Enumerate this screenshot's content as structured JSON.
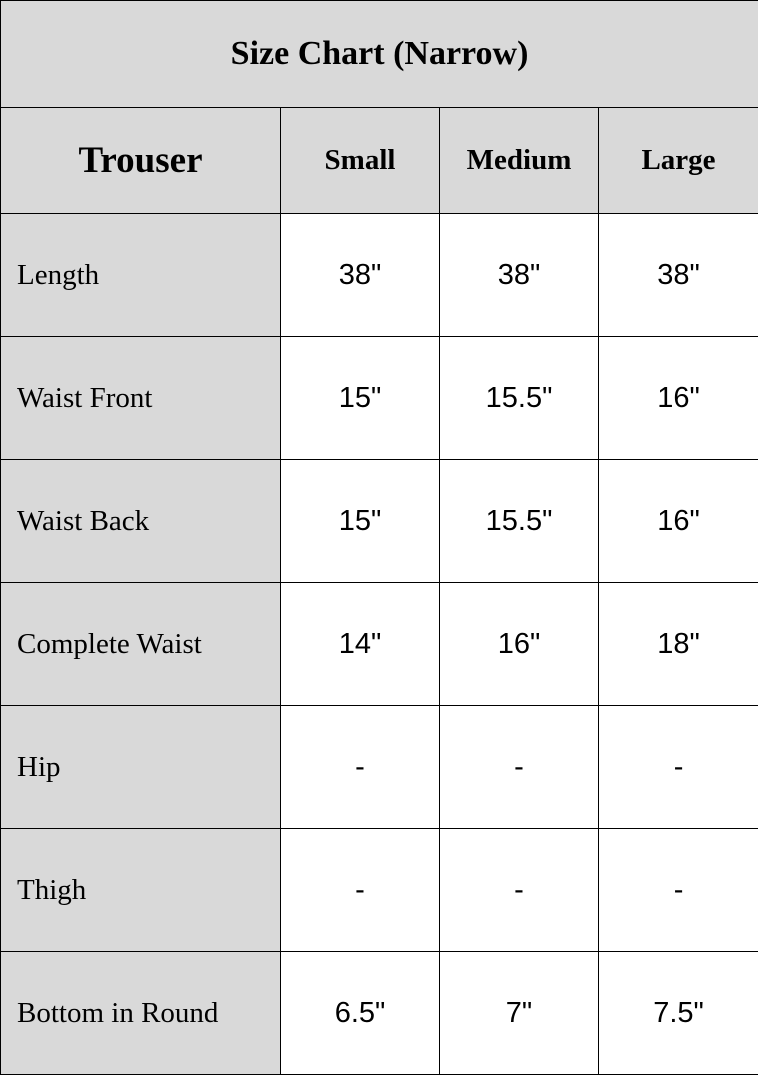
{
  "title": "Size Chart (Narrow)",
  "header": {
    "corner": "Trouser",
    "sizes": [
      "Small",
      "Medium",
      "Large"
    ]
  },
  "rows": [
    {
      "label": "Length",
      "values": [
        "38\"",
        "38\"",
        "38\""
      ]
    },
    {
      "label": "Waist Front",
      "values": [
        "15\"",
        "15.5\"",
        "16\""
      ]
    },
    {
      "label": "Waist Back",
      "values": [
        "15\"",
        "15.5\"",
        "16\""
      ]
    },
    {
      "label": "Complete Waist",
      "values": [
        "14\"",
        "16\"",
        "18\""
      ]
    },
    {
      "label": "Hip",
      "values": [
        "-",
        "-",
        "-"
      ]
    },
    {
      "label": "Thigh",
      "values": [
        "-",
        "-",
        "-"
      ]
    },
    {
      "label": "Bottom in Round",
      "values": [
        "6.5\"",
        "7\"",
        "7.5\""
      ]
    }
  ],
  "colors": {
    "header_bg": "#d9d9d9",
    "cell_bg": "#ffffff",
    "border": "#000000"
  }
}
